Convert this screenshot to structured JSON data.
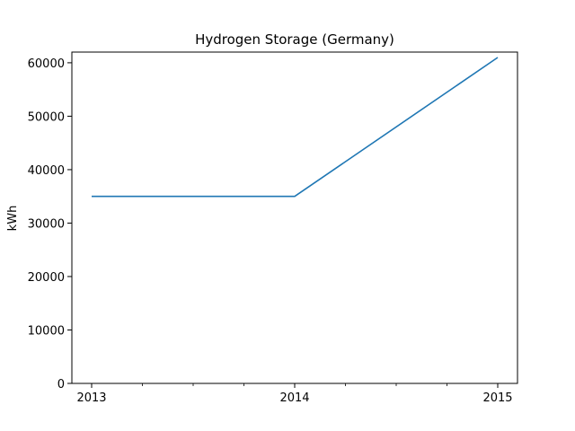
{
  "chart_data": {
    "type": "line",
    "title": "Hydrogen Storage (Germany)",
    "xlabel": "",
    "ylabel": "kWh",
    "x": [
      2013,
      2014,
      2015
    ],
    "x_tick_labels": [
      "2013",
      "2014",
      "2015"
    ],
    "series": [
      {
        "values": [
          35000,
          35000,
          61000
        ],
        "color": "#1f77b4"
      }
    ],
    "ylim": [
      0,
      62000
    ],
    "y_ticks": [
      0,
      10000,
      20000,
      30000,
      40000,
      50000,
      60000
    ],
    "y_tick_labels": [
      "0",
      "10000",
      "20000",
      "30000",
      "40000",
      "50000",
      "60000"
    ],
    "grid": false,
    "legend": "none"
  }
}
